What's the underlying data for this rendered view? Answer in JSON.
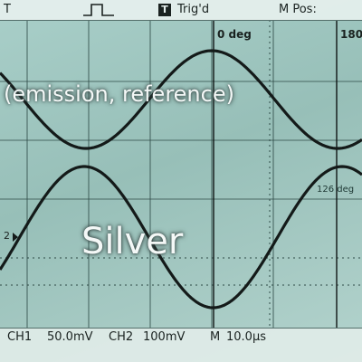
{
  "scope": {
    "top_left": "T",
    "trigger_state": "Trig'd",
    "trigger_badge": "T",
    "menu_pos": "M Pos:"
  },
  "markers": {
    "zero_deg": "0 deg",
    "one_eighty": "180",
    "ch2_marker": "2",
    "phase_label": "126 deg"
  },
  "overlay": {
    "caption": "(emission, reference)",
    "material": "Silver"
  },
  "status": {
    "ch1": "CH1",
    "ch1_scale": "50.0mV",
    "ch2": "CH2",
    "ch2_scale": "100mV",
    "timebase_prefix": "M",
    "timebase": "10.0µs"
  }
}
